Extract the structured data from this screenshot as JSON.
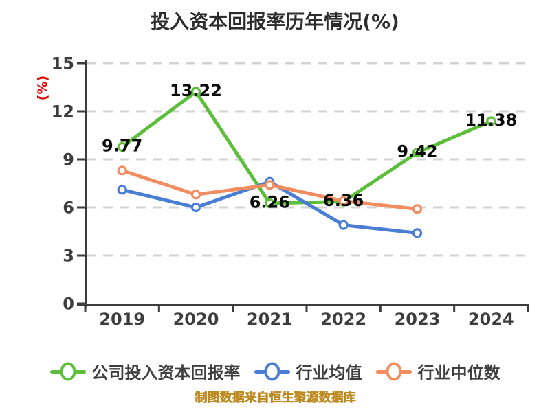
{
  "title": "投入资本回报率历年情况(%)",
  "y_axis_unit": "(%)",
  "footer": "制图数据来自恒生聚源数据库",
  "colors": {
    "background": "#ffffff",
    "title": "#2d2d2d",
    "axis": "#3d3d3d",
    "grid": "#d3d3d3",
    "tick_label": "#3d3d3d",
    "data_label": "#0a0a0a",
    "unit_label": "#e60000",
    "footer": "#bd8b22",
    "marker_fill": "#ffffff"
  },
  "chart_data": {
    "type": "line",
    "title": "投入资本回报率历年情况(%)",
    "xlabel": "",
    "ylabel": "(%)",
    "categories": [
      "2019",
      "2020",
      "2021",
      "2022",
      "2023",
      "2024"
    ],
    "y_ticks": [
      0,
      3,
      6,
      9,
      12,
      15
    ],
    "ylim": [
      0,
      15
    ],
    "grid": "horizontal-dashed",
    "legend_position": "bottom",
    "series": [
      {
        "name": "公司投入资本回报率",
        "color": "#5cbf3a",
        "values": [
          9.77,
          13.22,
          6.26,
          6.36,
          9.42,
          11.38
        ],
        "point_labels": true
      },
      {
        "name": "行业均值",
        "color": "#4a7ed4",
        "values": [
          7.1,
          6.0,
          7.6,
          4.9,
          4.4,
          null
        ],
        "point_labels": false
      },
      {
        "name": "行业中位数",
        "color": "#f18d5f",
        "values": [
          8.3,
          6.8,
          7.4,
          6.4,
          5.9,
          null
        ],
        "point_labels": false
      }
    ]
  },
  "legend": {
    "items": [
      {
        "label": "公司投入资本回报率",
        "color": "#5cbf3a"
      },
      {
        "label": "行业均值",
        "color": "#4a7ed4"
      },
      {
        "label": "行业中位数",
        "color": "#f18d5f"
      }
    ]
  }
}
